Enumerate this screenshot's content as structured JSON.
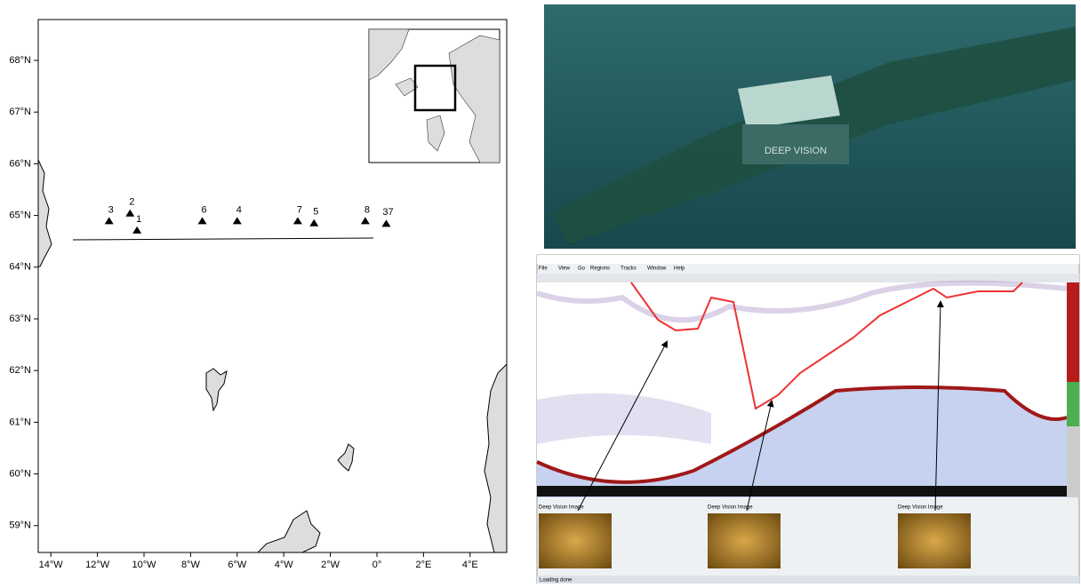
{
  "map": {
    "lat_ticks": [
      {
        "value": 59,
        "label": "59°N"
      },
      {
        "value": 60,
        "label": "60°N"
      },
      {
        "value": 61,
        "label": "61°N"
      },
      {
        "value": 62,
        "label": "62°N"
      },
      {
        "value": 63,
        "label": "63°N"
      },
      {
        "value": 64,
        "label": "64°N"
      },
      {
        "value": 65,
        "label": "65°N"
      },
      {
        "value": 66,
        "label": "66°N"
      },
      {
        "value": 67,
        "label": "67°N"
      },
      {
        "value": 68,
        "label": "68°N"
      }
    ],
    "lon_ticks": [
      {
        "value": -14,
        "label": "14°W"
      },
      {
        "value": -12,
        "label": "12°W"
      },
      {
        "value": -10,
        "label": "10°W"
      },
      {
        "value": -8,
        "label": "8°W"
      },
      {
        "value": -6,
        "label": "6°W"
      },
      {
        "value": -4,
        "label": "4°W"
      },
      {
        "value": -2,
        "label": "2°W"
      },
      {
        "value": 0,
        "label": "0°"
      },
      {
        "value": 2,
        "label": "2°E"
      },
      {
        "value": 4,
        "label": "4°E"
      }
    ],
    "stations": [
      {
        "label": "3",
        "lon": -11.5,
        "lat": 64.9
      },
      {
        "label": "2",
        "lon": -10.6,
        "lat": 65.05
      },
      {
        "label": "1",
        "lon": -10.3,
        "lat": 64.72
      },
      {
        "label": "6",
        "lon": -7.5,
        "lat": 64.9
      },
      {
        "label": "4",
        "lon": -6.0,
        "lat": 64.9
      },
      {
        "label": "7",
        "lon": -3.4,
        "lat": 64.9
      },
      {
        "label": "5",
        "lon": -2.7,
        "lat": 64.86
      },
      {
        "label": "8",
        "lon": -0.5,
        "lat": 64.9
      },
      {
        "label": "37",
        "lon": 0.4,
        "lat": 64.85
      }
    ]
  },
  "photo": {
    "logo_text": "DEEP VISION"
  },
  "echogram": {
    "menu": [
      "File",
      "View",
      "Go",
      "Regions",
      "Tracks",
      "Window",
      "Help"
    ],
    "image_labels": [
      "Deep Vision Image",
      "Deep Vision Image",
      "Deep Vision Image"
    ],
    "status": "Loading done"
  }
}
